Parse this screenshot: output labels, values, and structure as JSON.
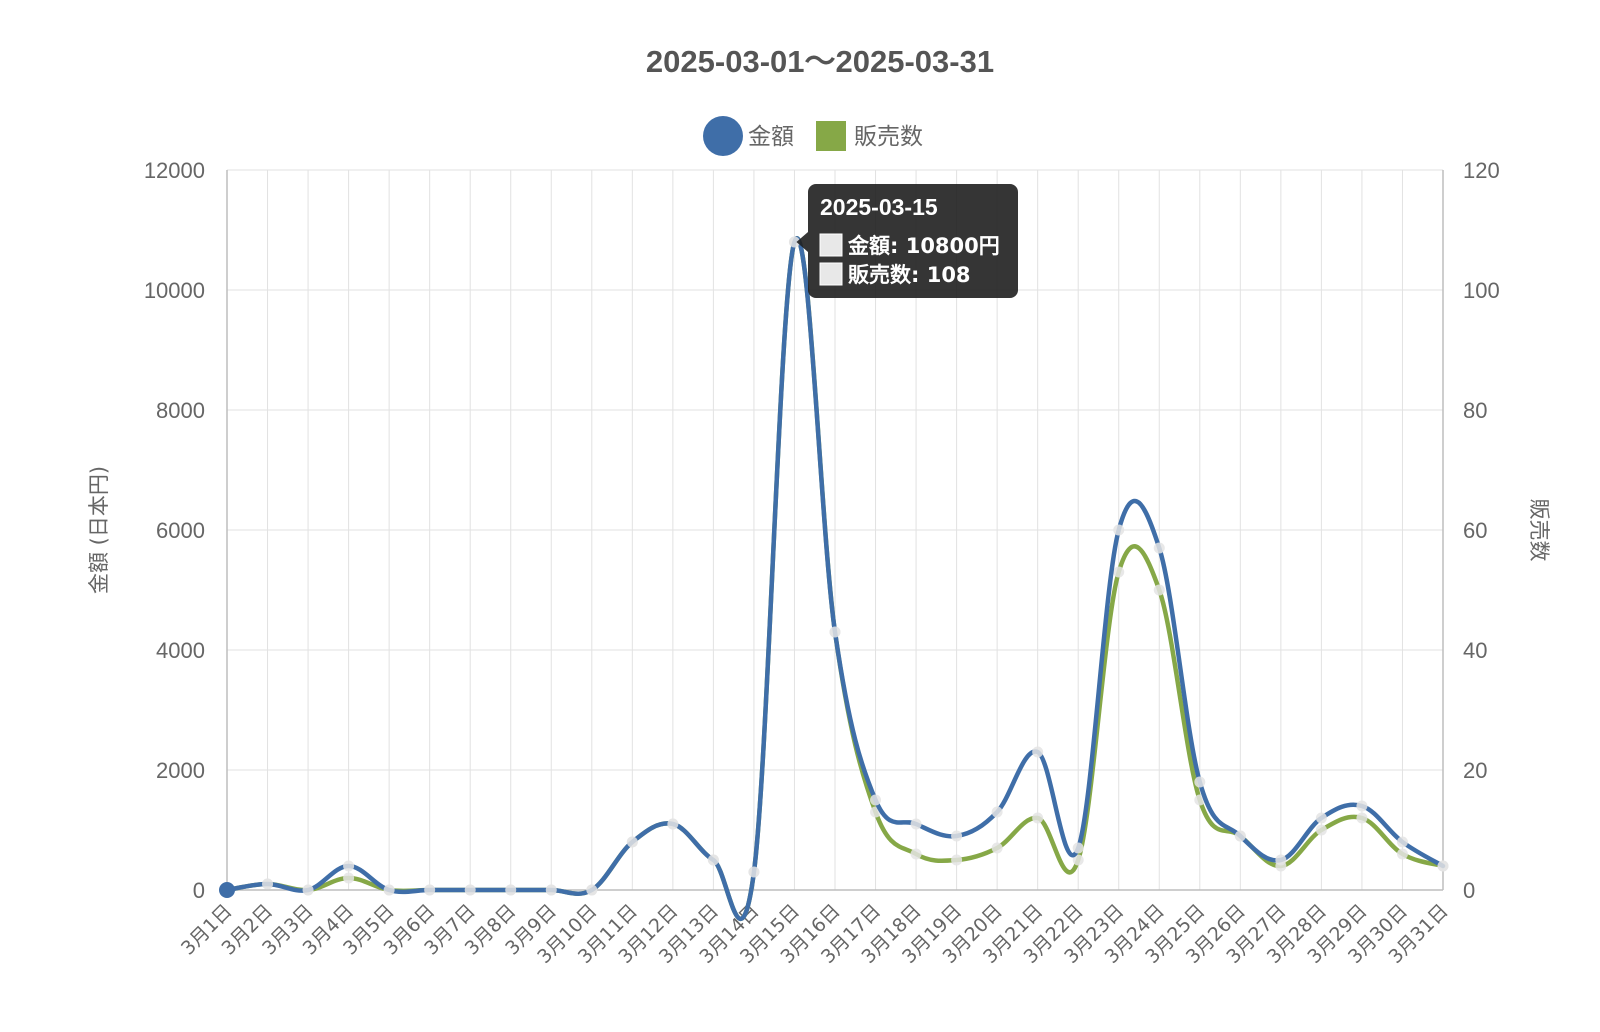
{
  "chart_data": {
    "type": "line",
    "title": "2025-03-01～2025-03-31",
    "categories": [
      "3月1日",
      "3月2日",
      "3月3日",
      "3月4日",
      "3月5日",
      "3月6日",
      "3月7日",
      "3月8日",
      "3月9日",
      "3月10日",
      "3月11日",
      "3月12日",
      "3月13日",
      "3月14日",
      "3月15日",
      "3月16日",
      "3月17日",
      "3月18日",
      "3月19日",
      "3月20日",
      "3月21日",
      "3月22日",
      "3月23日",
      "3月24日",
      "3月25日",
      "3月26日",
      "3月27日",
      "3月28日",
      "3月29日",
      "3月30日",
      "3月31日"
    ],
    "series": [
      {
        "name": "金額",
        "axis": "left",
        "color": "#3f6ea8",
        "values": [
          0,
          100,
          0,
          400,
          0,
          0,
          0,
          0,
          0,
          0,
          800,
          1100,
          500,
          300,
          10800,
          4300,
          1500,
          1100,
          900,
          1300,
          2300,
          700,
          6000,
          5700,
          1800,
          900,
          500,
          1200,
          1400,
          800,
          400
        ]
      },
      {
        "name": "販売数",
        "axis": "right",
        "color": "#86a847",
        "values": [
          0,
          1,
          0,
          2,
          0,
          0,
          0,
          0,
          0,
          0,
          8,
          11,
          5,
          3,
          108,
          43,
          13,
          6,
          5,
          7,
          12,
          5,
          53,
          50,
          15,
          9,
          4,
          10,
          12,
          6,
          4
        ]
      }
    ],
    "y_left": {
      "label": "金額 (日本円)",
      "ylim": [
        0,
        12000
      ],
      "ticks": [
        0,
        2000,
        4000,
        6000,
        8000,
        10000,
        12000
      ]
    },
    "y_right": {
      "label": "販売数",
      "ylim": [
        0,
        120
      ],
      "ticks": [
        0,
        20,
        40,
        60,
        80,
        100,
        120
      ]
    },
    "legend": {
      "placement": "top"
    },
    "grid": true,
    "tooltip": {
      "index": 14,
      "title": "2025-03-15",
      "lines": [
        "金額: 10800円",
        "販売数: 108"
      ]
    }
  }
}
